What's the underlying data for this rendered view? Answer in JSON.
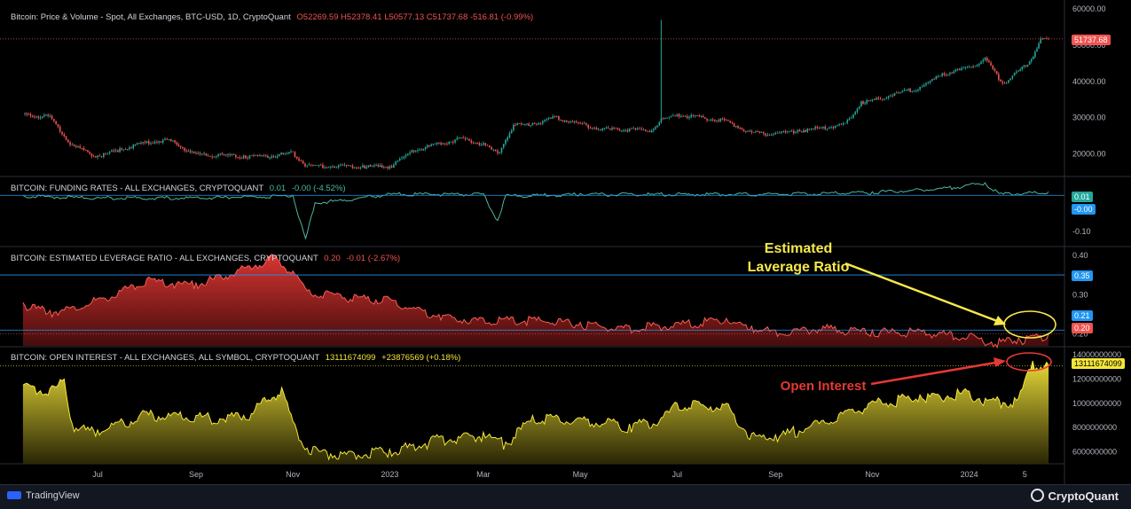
{
  "price_header": {
    "title": "Bitcoin: Price & Volume - Spot, All Exchanges, BTC-USD, 1D, CryptoQuant",
    "o_label": "O",
    "o": "52269.59",
    "h_label": "H",
    "h": "52378.41",
    "l_label": "L",
    "l": "50577.13",
    "c_label": "C",
    "c": "51737.68",
    "chg": "-516.81 (-0.99%)"
  },
  "funding_header": {
    "title": "BITCOIN: FUNDING RATES - ALL EXCHANGES, CRYPTOQUANT",
    "v1": "0.01",
    "v2": "-0.00 (-4.52%)"
  },
  "leverage_header": {
    "title": "BITCOIN: ESTIMATED LEVERAGE RATIO - ALL EXCHANGES, CRYPTOQUANT",
    "v1": "0.20",
    "v2": "-0.01 (-2.67%)"
  },
  "oi_header": {
    "title": "BITCOIN: OPEN INTEREST - ALL EXCHANGES, ALL SYMBOL, CRYPTOQUANT",
    "v1": "13111674099",
    "v2": "+23876569 (+0.18%)"
  },
  "price_labels": {
    "last": "51737.68",
    "funding_a": "0.01",
    "funding_b": "-0.00",
    "lev_a": "0.35",
    "lev_b": "0.21",
    "lev_c": "0.20",
    "oi_last": "13111674099"
  },
  "annotations": {
    "leverage": "Estimated\nLaverage Ratio",
    "oi": "Open Interest"
  },
  "footer": {
    "left": "TradingView",
    "right": "CryptoQuant"
  },
  "colors": {
    "up": "#26a69a",
    "down": "#ef5350",
    "funding": "#4db6a0",
    "leverage": "#e53935",
    "oi": "#f5e63a",
    "annotation_leverage": "#f7e84a",
    "annotation_oi": "#e53935"
  },
  "chart_data": [
    {
      "type": "line",
      "name": "price",
      "title": "Bitcoin: Price & Volume - Spot, All Exchanges, BTC-USD, 1D, CryptoQuant",
      "x": [
        "2022-05-15",
        "2022-06-01",
        "2022-06-15",
        "2022-07-01",
        "2022-07-15",
        "2022-08-01",
        "2022-08-15",
        "2022-09-01",
        "2022-09-15",
        "2022-10-01",
        "2022-10-15",
        "2022-11-01",
        "2022-11-10",
        "2022-12-01",
        "2022-12-15",
        "2023-01-01",
        "2023-01-15",
        "2023-02-01",
        "2023-02-15",
        "2023-03-01",
        "2023-03-10",
        "2023-03-20",
        "2023-04-01",
        "2023-04-15",
        "2023-05-01",
        "2023-05-15",
        "2023-06-01",
        "2023-06-15",
        "2023-06-21",
        "2023-07-01",
        "2023-07-15",
        "2023-08-01",
        "2023-08-17",
        "2023-09-01",
        "2023-09-15",
        "2023-10-01",
        "2023-10-15",
        "2023-10-25",
        "2023-11-01",
        "2023-11-15",
        "2023-12-01",
        "2023-12-15",
        "2024-01-01",
        "2024-01-11",
        "2024-01-22",
        "2024-02-01",
        "2024-02-08",
        "2024-02-15",
        "2024-02-20"
      ],
      "y": [
        31000,
        30500,
        22500,
        19500,
        21500,
        23500,
        24000,
        20000,
        19800,
        19500,
        19400,
        20500,
        16800,
        17000,
        16800,
        16600,
        21000,
        23000,
        24500,
        23000,
        20200,
        28000,
        28500,
        30300,
        28500,
        27000,
        27000,
        26500,
        29800,
        31000,
        30300,
        29300,
        26000,
        25800,
        26600,
        27500,
        28500,
        34500,
        35000,
        36800,
        38500,
        42200,
        44000,
        46500,
        39500,
        43000,
        45500,
        51800,
        51737.68
      ],
      "y_ticks": [
        20000,
        30000,
        40000,
        50000,
        60000
      ],
      "y_tick_labels": [
        "20000.00",
        "30000.00",
        "40000.00",
        "50000.00",
        "60000.00"
      ],
      "ylim": [
        14000,
        61000
      ]
    },
    {
      "type": "line",
      "name": "funding_rates",
      "x": [
        "2022-05-15",
        "2022-07-01",
        "2022-09-01",
        "2022-11-01",
        "2022-11-09",
        "2022-11-15",
        "2023-01-01",
        "2023-03-01",
        "2023-03-10",
        "2023-03-15",
        "2023-05-01",
        "2023-07-01",
        "2023-09-01",
        "2023-11-01",
        "2023-12-15",
        "2024-01-01",
        "2024-01-11",
        "2024-01-20",
        "2024-02-20"
      ],
      "y": [
        0.0,
        -0.005,
        -0.005,
        0.0,
        -0.12,
        -0.02,
        0.005,
        0.005,
        -0.07,
        0.0,
        0.005,
        0.005,
        0.005,
        0.01,
        0.02,
        0.03,
        0.035,
        0.005,
        0.01
      ],
      "y_ticks": [
        0.0,
        -0.1
      ],
      "y_tick_labels": [
        "0.00",
        "-0.10"
      ],
      "ylim": [
        -0.14,
        0.05
      ]
    },
    {
      "type": "area",
      "name": "estimated_leverage_ratio",
      "x": [
        "2022-05-15",
        "2022-06-01",
        "2022-06-15",
        "2022-07-01",
        "2022-08-01",
        "2022-09-01",
        "2022-10-01",
        "2022-10-20",
        "2022-11-01",
        "2022-11-10",
        "2022-12-01",
        "2023-01-01",
        "2023-02-01",
        "2023-03-01",
        "2023-04-01",
        "2023-05-01",
        "2023-06-01",
        "2023-07-01",
        "2023-08-01",
        "2023-08-17",
        "2023-09-01",
        "2023-10-01",
        "2023-11-01",
        "2023-12-01",
        "2024-01-01",
        "2024-01-15",
        "2024-02-01",
        "2024-02-20"
      ],
      "y": [
        0.28,
        0.26,
        0.27,
        0.29,
        0.34,
        0.33,
        0.37,
        0.4,
        0.36,
        0.31,
        0.3,
        0.29,
        0.25,
        0.24,
        0.24,
        0.23,
        0.22,
        0.23,
        0.24,
        0.22,
        0.21,
        0.22,
        0.21,
        0.21,
        0.2,
        0.18,
        0.19,
        0.2
      ],
      "y_ticks": [
        0.2,
        0.3,
        0.4
      ],
      "y_tick_labels": [
        "0.20",
        "0.30",
        "0.40"
      ],
      "ylim": [
        0.17,
        0.42
      ]
    },
    {
      "type": "area",
      "name": "open_interest",
      "x": [
        "2022-05-15",
        "2022-06-01",
        "2022-06-10",
        "2022-06-15",
        "2022-07-01",
        "2022-08-01",
        "2022-09-01",
        "2022-10-01",
        "2022-10-25",
        "2022-11-01",
        "2022-11-10",
        "2022-12-01",
        "2023-01-01",
        "2023-02-01",
        "2023-03-01",
        "2023-03-15",
        "2023-04-01",
        "2023-05-01",
        "2023-06-01",
        "2023-06-21",
        "2023-07-01",
        "2023-08-01",
        "2023-08-17",
        "2023-09-01",
        "2023-10-01",
        "2023-11-01",
        "2023-12-01",
        "2024-01-01",
        "2024-01-15",
        "2024-02-01",
        "2024-02-10",
        "2024-02-20"
      ],
      "y": [
        11500000000,
        11200000000,
        12000000000,
        8300000000,
        7800000000,
        9300000000,
        9000000000,
        9000000000,
        11300000000,
        8500000000,
        6300000000,
        6000000000,
        6200000000,
        7200000000,
        7600000000,
        6800000000,
        9000000000,
        8800000000,
        8300000000,
        8800000000,
        10000000000,
        10000000000,
        7500000000,
        7400000000,
        8600000000,
        10200000000,
        10700000000,
        11000000000,
        10300000000,
        10400000000,
        13500000000,
        13111674099
      ],
      "y_ticks": [
        6000000000,
        8000000000,
        10000000000,
        12000000000,
        14000000000
      ],
      "y_tick_labels": [
        "6000000000",
        "8000000000",
        "10000000000",
        "12000000000",
        "14000000000"
      ],
      "ylim": [
        5000000000,
        14600000000
      ]
    }
  ],
  "x_axis": {
    "ticks": [
      "2022-07-01",
      "2022-09-01",
      "2022-11-01",
      "2023-01-01",
      "2023-03-01",
      "2023-05-01",
      "2023-07-01",
      "2023-09-01",
      "2023-11-01",
      "2024-01-01",
      "2024-02-05"
    ],
    "labels": [
      "Jul",
      "Sep",
      "Nov",
      "2023",
      "Mar",
      "May",
      "Jul",
      "Sep",
      "Nov",
      "2024",
      "5"
    ]
  }
}
